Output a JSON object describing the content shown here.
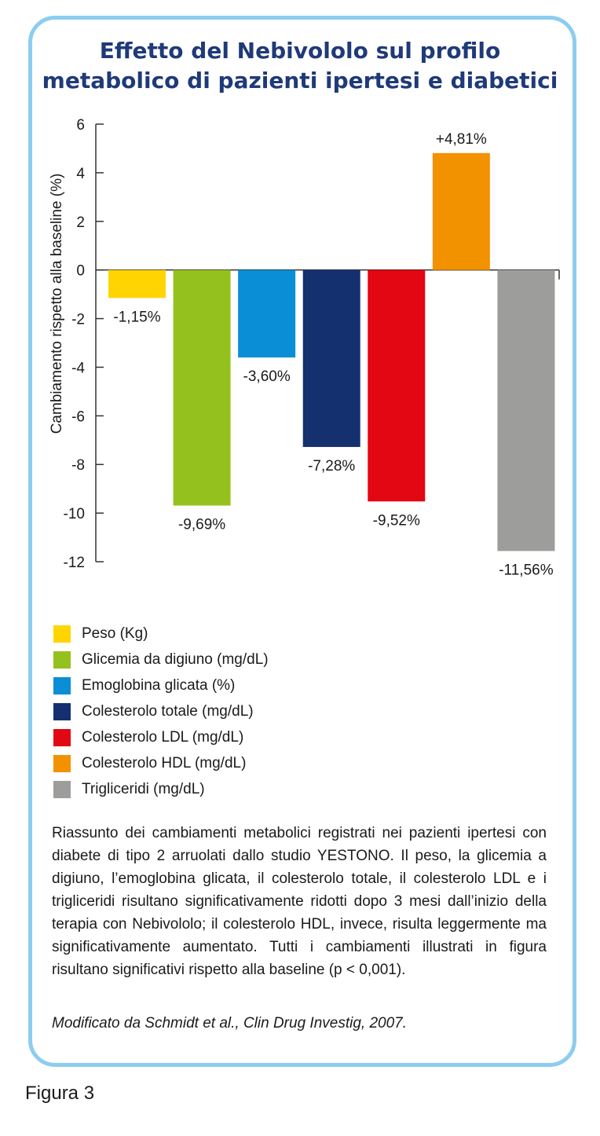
{
  "title_line1": "Effetto del Nebivololo sul profilo",
  "title_line2": "metabolico di pazienti ipertesi e diabetici",
  "chart_data": {
    "type": "bar",
    "title": "Effetto del Nebivololo sul profilo metabolico di pazienti ipertesi e diabetici",
    "xlabel": "",
    "ylabel": "Cambiamento rispetto alla baseline (%)",
    "ylim": [
      -12,
      6
    ],
    "yticks": [
      6,
      4,
      2,
      0,
      -2,
      -4,
      -6,
      -8,
      -10,
      -12
    ],
    "ytick_labels": [
      "6",
      "4",
      "2",
      "0",
      "-2",
      "-4",
      "-6",
      "-8",
      "-10",
      "-12"
    ],
    "grid": false,
    "legend_position": "bottom-left",
    "categories": [
      "Peso (Kg)",
      "Glicemia da digiuno (mg/dL)",
      "Emoglobina glicata (%)",
      "Colesterolo totale (mg/dL)",
      "Colesterolo LDL (mg/dL)",
      "Colesterolo HDL (mg/dL)",
      "Trigliceridi (mg/dL)"
    ],
    "values": [
      -1.15,
      -9.69,
      -3.6,
      -7.28,
      -9.52,
      4.81,
      -11.56
    ],
    "data_labels": [
      "-1,15%",
      "-9,69%",
      "-3,60%",
      "-7,28%",
      "-9,52%",
      "+4,81%",
      "-11,56%"
    ],
    "colors": [
      "#ffd400",
      "#95c11f",
      "#0a8ed6",
      "#15306f",
      "#e30613",
      "#f39200",
      "#9d9d9c"
    ]
  },
  "legend": {
    "items": [
      "Peso (Kg)",
      "Glicemia da digiuno (mg/dL)",
      "Emoglobina glicata (%)",
      "Colesterolo totale (mg/dL)",
      "Colesterolo LDL (mg/dL)",
      "Colesterolo HDL (mg/dL)",
      "Trigliceridi (mg/dL)"
    ]
  },
  "caption": "Riassunto dei cambiamenti metabolici registrati nei pazienti ipertesi con diabete di tipo 2 arruolati dallo studio YESTONO. Il peso, la glicemia a digiuno, l’emoglobina glicata, il colesterolo totale, il colesterolo LDL e i trigliceridi risultano significativamente ridotti dopo 3 mesi dall’inizio della terapia con Nebivololo; il colesterolo HDL, invece, risulta leggermente ma significativamente aumentato. Tutti i cambiamenti illustrati in figura risultano significativi rispetto alla baseline (p < 0,001).",
  "source": "Modificato da Schmidt et al., Clin Drug Investig, 2007.",
  "figure_label": "Figura 3"
}
